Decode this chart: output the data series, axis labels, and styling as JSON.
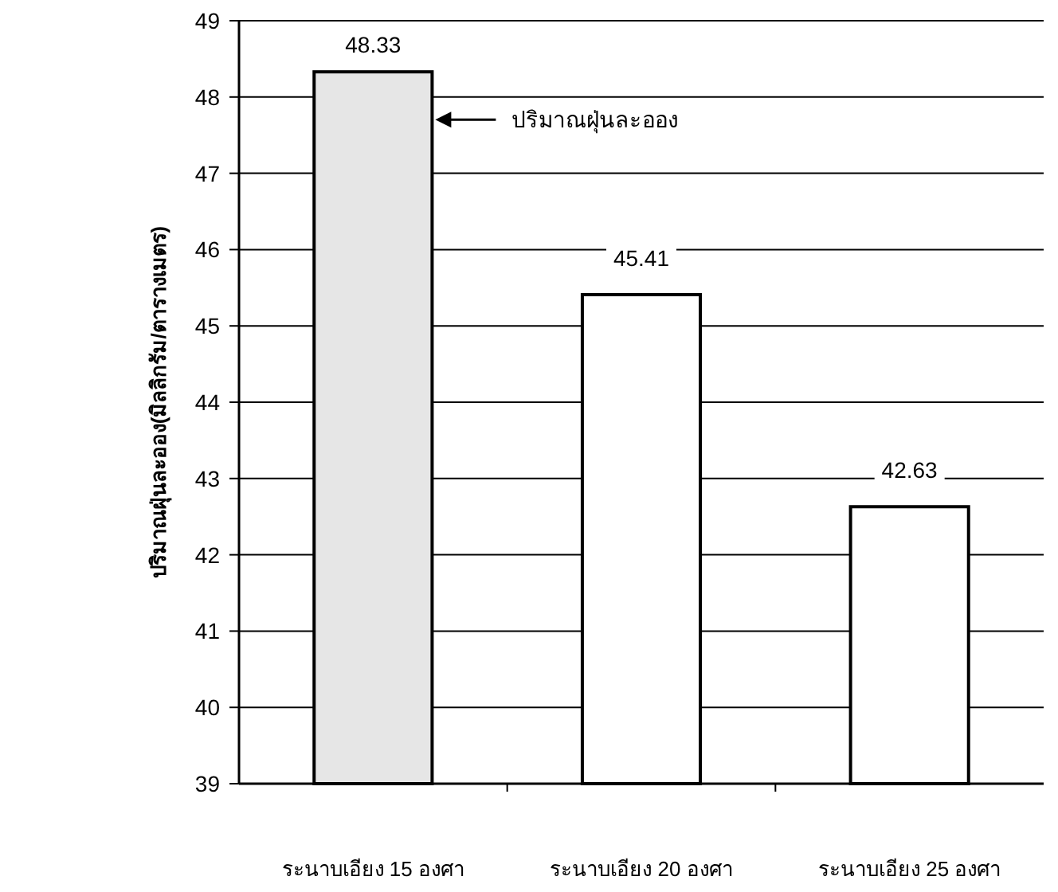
{
  "chart_data": {
    "type": "bar",
    "categories": [
      "ระนาบเอียง 15 องศา",
      "ระนาบเอียง 20 องศา",
      "ระนาบเอียง 25 องศา"
    ],
    "values": [
      48.33,
      45.41,
      42.63
    ],
    "colors": [
      "#e6e6e6",
      "#ffffff",
      "#ffffff"
    ],
    "ylabel": "ปริมาณฝุ่นละออง(มิลลิกรัม/ตารางเมตร)",
    "ylim": [
      39,
      49
    ],
    "yticks": [
      39,
      40,
      41,
      42,
      43,
      44,
      45,
      46,
      47,
      48,
      49
    ],
    "grid": "y",
    "data_labels": true,
    "annotations": [
      "ปริมาณฝุ่นละออง"
    ]
  }
}
